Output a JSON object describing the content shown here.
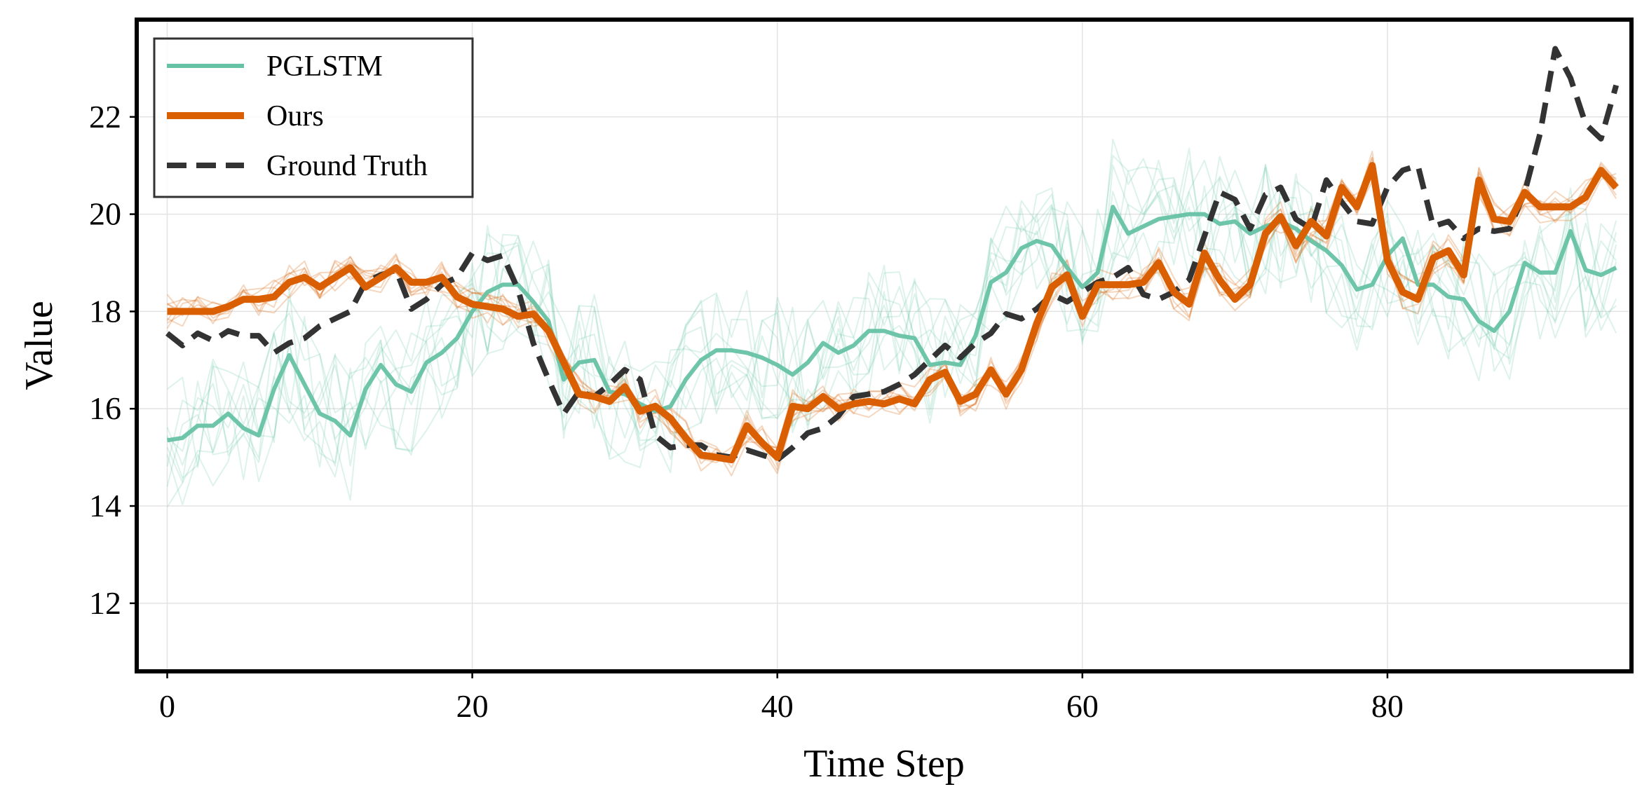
{
  "chart_data": {
    "type": "line",
    "title": "",
    "xlabel": "Time Step",
    "ylabel": "Value",
    "xlim": [
      -2,
      96
    ],
    "ylim": [
      10.6,
      24.0
    ],
    "xticks": [
      0,
      20,
      40,
      60,
      80
    ],
    "yticks": [
      12,
      14,
      16,
      18,
      20,
      22
    ],
    "grid": true,
    "legend_position": "top-left",
    "legend": [
      "PGLSTM",
      "Ours",
      "Ground Truth"
    ],
    "colors": {
      "pglstm": "#66c2a5",
      "ours": "#d95f02",
      "ground_truth": "#333333"
    },
    "series": [
      {
        "name": "PGLSTM",
        "values": [
          15.35,
          15.4,
          15.65,
          15.65,
          15.9,
          15.6,
          15.45,
          16.4,
          17.1,
          16.5,
          15.9,
          15.75,
          15.45,
          16.4,
          16.9,
          16.5,
          16.35,
          16.95,
          17.15,
          17.45,
          18.0,
          18.4,
          18.55,
          18.55,
          18.2,
          17.8,
          16.6,
          16.95,
          17.0,
          16.35,
          16.3,
          16.1,
          15.95,
          16.05,
          16.6,
          17.0,
          17.2,
          17.2,
          17.15,
          17.05,
          16.9,
          16.7,
          16.95,
          17.35,
          17.15,
          17.3,
          17.6,
          17.6,
          17.5,
          17.45,
          16.9,
          16.95,
          16.9,
          17.5,
          18.6,
          18.8,
          19.3,
          19.45,
          19.35,
          18.9,
          18.5,
          18.8,
          20.15,
          19.6,
          19.75,
          19.9,
          19.95,
          20.0,
          20.0,
          19.8,
          19.85,
          19.6,
          19.75,
          19.85,
          19.7,
          19.45,
          19.25,
          18.95,
          18.45,
          18.55,
          19.15,
          19.5,
          18.55,
          18.55,
          18.3,
          18.25,
          17.8,
          17.6,
          18.0,
          19.0,
          18.8,
          18.8,
          19.65,
          18.85,
          18.75,
          18.9
        ]
      },
      {
        "name": "Ours",
        "values": [
          18.0,
          18.0,
          18.0,
          18.0,
          18.1,
          18.25,
          18.25,
          18.3,
          18.6,
          18.7,
          18.5,
          18.7,
          18.9,
          18.5,
          18.7,
          18.9,
          18.6,
          18.6,
          18.7,
          18.3,
          18.15,
          18.1,
          18.05,
          17.9,
          17.95,
          17.6,
          16.95,
          16.3,
          16.25,
          16.15,
          16.45,
          15.95,
          16.05,
          15.8,
          15.4,
          15.05,
          15.0,
          14.95,
          15.65,
          15.3,
          15.0,
          16.05,
          16.0,
          16.25,
          16.0,
          16.1,
          16.15,
          16.1,
          16.2,
          16.1,
          16.6,
          16.75,
          16.15,
          16.3,
          16.8,
          16.3,
          16.8,
          17.75,
          18.5,
          18.75,
          17.9,
          18.55,
          18.55,
          18.55,
          18.6,
          19.0,
          18.4,
          18.15,
          19.2,
          18.65,
          18.25,
          18.55,
          19.6,
          19.95,
          19.35,
          19.85,
          19.55,
          20.55,
          20.15,
          21.0,
          19.05,
          18.4,
          18.25,
          19.1,
          19.25,
          18.75,
          20.7,
          19.9,
          19.85,
          20.45,
          20.15,
          20.15,
          20.15,
          20.35,
          20.9,
          20.55
        ]
      },
      {
        "name": "Ground Truth",
        "values": [
          17.55,
          17.3,
          17.55,
          17.4,
          17.6,
          17.5,
          17.5,
          17.15,
          17.35,
          17.45,
          17.7,
          17.85,
          18.0,
          18.6,
          18.75,
          18.85,
          18.05,
          18.25,
          18.55,
          18.7,
          19.2,
          19.05,
          19.15,
          18.45,
          17.35,
          16.6,
          15.9,
          16.35,
          16.25,
          16.5,
          16.8,
          16.6,
          15.45,
          15.2,
          15.25,
          15.25,
          15.05,
          15.0,
          15.15,
          15.05,
          14.95,
          15.2,
          15.5,
          15.6,
          15.85,
          16.25,
          16.3,
          16.35,
          16.5,
          16.7,
          17.0,
          17.3,
          17.05,
          17.35,
          17.55,
          17.95,
          17.85,
          18.05,
          18.35,
          18.2,
          18.4,
          18.6,
          18.7,
          18.9,
          18.35,
          18.25,
          18.4,
          18.65,
          19.55,
          20.45,
          20.3,
          19.7,
          20.4,
          20.55,
          19.9,
          19.7,
          20.7,
          20.25,
          19.85,
          19.8,
          20.55,
          20.9,
          21.0,
          19.75,
          19.85,
          19.5,
          19.7,
          19.65,
          19.7,
          20.45,
          21.65,
          23.4,
          22.8,
          21.85,
          21.55,
          22.65
        ]
      }
    ],
    "annotations": [
      "faint ensemble sample lines drawn behind PGLSTM and Ours"
    ]
  }
}
